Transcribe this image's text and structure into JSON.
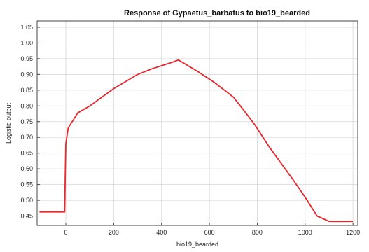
{
  "chart_data": {
    "type": "line",
    "title": "Response of Gypaetus_barbatus to bio19_bearded",
    "xlabel": "bio19_bearded",
    "ylabel": "Logistic output",
    "xlim": [
      -120,
      1220
    ],
    "ylim": [
      0.42,
      1.07
    ],
    "x_ticks": [
      0,
      200,
      400,
      600,
      800,
      1000,
      1200
    ],
    "x_tick_labels": [
      "0",
      "200",
      "400",
      "600",
      "800",
      "1000",
      "1200"
    ],
    "y_ticks": [
      0.45,
      0.5,
      0.55,
      0.6,
      0.65,
      0.7,
      0.75,
      0.8,
      0.85,
      0.9,
      0.95,
      1.0,
      1.05
    ],
    "y_tick_labels": [
      "0.45",
      "0.50",
      "0.55",
      "0.60",
      "0.65",
      "0.70",
      "0.75",
      "0.80",
      "0.85",
      "0.90",
      "0.95",
      "1.00",
      "1.05"
    ],
    "grid": true,
    "series": [
      {
        "color": "#e8262b",
        "x": [
          -110,
          -5,
          0,
          10,
          50,
          100,
          200,
          300,
          360,
          450,
          470,
          550,
          620,
          700,
          740,
          790,
          850,
          950,
          1000,
          1050,
          1100,
          1200
        ],
        "y": [
          0.463,
          0.463,
          0.68,
          0.73,
          0.778,
          0.8,
          0.855,
          0.9,
          0.918,
          0.94,
          0.946,
          0.91,
          0.875,
          0.828,
          0.79,
          0.74,
          0.67,
          0.565,
          0.51,
          0.45,
          0.433,
          0.433
        ]
      }
    ]
  }
}
